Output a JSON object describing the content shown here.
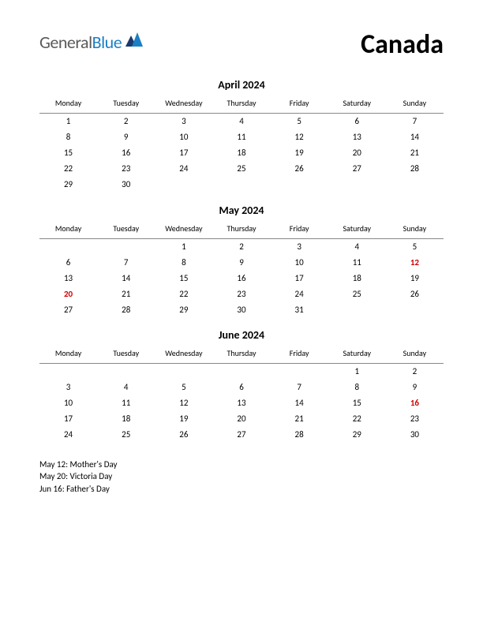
{
  "logo": {
    "general": "General",
    "blue": "Blue"
  },
  "title": "Canada",
  "day_headers": [
    "Monday",
    "Tuesday",
    "Wednesday",
    "Thursday",
    "Friday",
    "Saturday",
    "Sunday"
  ],
  "months": [
    {
      "title": "April 2024",
      "weeks": [
        [
          {
            "d": "1"
          },
          {
            "d": "2"
          },
          {
            "d": "3"
          },
          {
            "d": "4"
          },
          {
            "d": "5"
          },
          {
            "d": "6"
          },
          {
            "d": "7"
          }
        ],
        [
          {
            "d": "8"
          },
          {
            "d": "9"
          },
          {
            "d": "10"
          },
          {
            "d": "11"
          },
          {
            "d": "12"
          },
          {
            "d": "13"
          },
          {
            "d": "14"
          }
        ],
        [
          {
            "d": "15"
          },
          {
            "d": "16"
          },
          {
            "d": "17"
          },
          {
            "d": "18"
          },
          {
            "d": "19"
          },
          {
            "d": "20"
          },
          {
            "d": "21"
          }
        ],
        [
          {
            "d": "22"
          },
          {
            "d": "23"
          },
          {
            "d": "24"
          },
          {
            "d": "25"
          },
          {
            "d": "26"
          },
          {
            "d": "27"
          },
          {
            "d": "28"
          }
        ],
        [
          {
            "d": "29"
          },
          {
            "d": "30"
          },
          {
            "d": ""
          },
          {
            "d": ""
          },
          {
            "d": ""
          },
          {
            "d": ""
          },
          {
            "d": ""
          }
        ]
      ]
    },
    {
      "title": "May 2024",
      "weeks": [
        [
          {
            "d": ""
          },
          {
            "d": ""
          },
          {
            "d": "1"
          },
          {
            "d": "2"
          },
          {
            "d": "3"
          },
          {
            "d": "4"
          },
          {
            "d": "5"
          }
        ],
        [
          {
            "d": "6"
          },
          {
            "d": "7"
          },
          {
            "d": "8"
          },
          {
            "d": "9"
          },
          {
            "d": "10"
          },
          {
            "d": "11"
          },
          {
            "d": "12",
            "h": true
          }
        ],
        [
          {
            "d": "13"
          },
          {
            "d": "14"
          },
          {
            "d": "15"
          },
          {
            "d": "16"
          },
          {
            "d": "17"
          },
          {
            "d": "18"
          },
          {
            "d": "19"
          }
        ],
        [
          {
            "d": "20",
            "h": true
          },
          {
            "d": "21"
          },
          {
            "d": "22"
          },
          {
            "d": "23"
          },
          {
            "d": "24"
          },
          {
            "d": "25"
          },
          {
            "d": "26"
          }
        ],
        [
          {
            "d": "27"
          },
          {
            "d": "28"
          },
          {
            "d": "29"
          },
          {
            "d": "30"
          },
          {
            "d": "31"
          },
          {
            "d": ""
          },
          {
            "d": ""
          }
        ]
      ]
    },
    {
      "title": "June 2024",
      "weeks": [
        [
          {
            "d": ""
          },
          {
            "d": ""
          },
          {
            "d": ""
          },
          {
            "d": ""
          },
          {
            "d": ""
          },
          {
            "d": "1"
          },
          {
            "d": "2"
          }
        ],
        [
          {
            "d": "3"
          },
          {
            "d": "4"
          },
          {
            "d": "5"
          },
          {
            "d": "6"
          },
          {
            "d": "7"
          },
          {
            "d": "8"
          },
          {
            "d": "9"
          }
        ],
        [
          {
            "d": "10"
          },
          {
            "d": "11"
          },
          {
            "d": "12"
          },
          {
            "d": "13"
          },
          {
            "d": "14"
          },
          {
            "d": "15"
          },
          {
            "d": "16",
            "h": true
          }
        ],
        [
          {
            "d": "17"
          },
          {
            "d": "18"
          },
          {
            "d": "19"
          },
          {
            "d": "20"
          },
          {
            "d": "21"
          },
          {
            "d": "22"
          },
          {
            "d": "23"
          }
        ],
        [
          {
            "d": "24"
          },
          {
            "d": "25"
          },
          {
            "d": "26"
          },
          {
            "d": "27"
          },
          {
            "d": "28"
          },
          {
            "d": "29"
          },
          {
            "d": "30"
          }
        ]
      ]
    }
  ],
  "holiday_list": [
    "May 12: Mother's Day",
    "May 20: Victoria Day",
    "Jun 16: Father's Day"
  ],
  "colors": {
    "holiday": "#d00000",
    "logo_gray": "#5a5a5a",
    "logo_blue": "#1a7fc4",
    "logo_navy": "#1a3a6e"
  }
}
